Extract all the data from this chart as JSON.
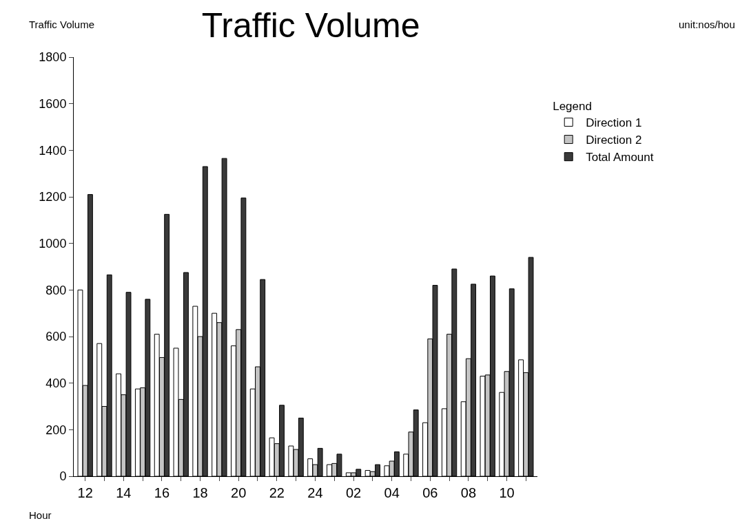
{
  "chart_data": {
    "type": "bar",
    "title": "Traffic Volume",
    "xlabel": "Hour",
    "ylabel": "Traffic Volume",
    "legend_title": "Legend",
    "annotations": [
      "unit:nos/hou"
    ],
    "categories": [
      "12",
      null,
      "14",
      null,
      "16",
      null,
      "18",
      null,
      "20",
      null,
      "22",
      null,
      "24",
      null,
      "02",
      null,
      "04",
      null,
      "06",
      null,
      "08",
      null,
      "10",
      null
    ],
    "series": [
      {
        "name": "Direction 1",
        "color": "#ffffff",
        "values": [
          800,
          570,
          440,
          375,
          610,
          550,
          730,
          700,
          560,
          375,
          165,
          130,
          75,
          50,
          15,
          25,
          45,
          95,
          230,
          290,
          320,
          430,
          360,
          500
        ]
      },
      {
        "name": "Direction 2",
        "color": "#c4c4c4",
        "values": [
          390,
          300,
          350,
          380,
          510,
          330,
          600,
          660,
          630,
          470,
          140,
          115,
          50,
          55,
          15,
          20,
          65,
          190,
          590,
          610,
          505,
          435,
          450,
          445
        ]
      },
      {
        "name": "Total Amount",
        "color": "#3a3a3a",
        "values": [
          1210,
          865,
          790,
          760,
          1125,
          875,
          1330,
          1365,
          1195,
          845,
          305,
          250,
          120,
          95,
          30,
          50,
          105,
          285,
          820,
          890,
          825,
          860,
          805,
          940
        ]
      }
    ],
    "ylim": [
      0,
      1800
    ],
    "yticks": [
      0,
      200,
      400,
      600,
      800,
      1000,
      1200,
      1400,
      1600,
      1800
    ],
    "grid": false,
    "legend": "top right"
  }
}
